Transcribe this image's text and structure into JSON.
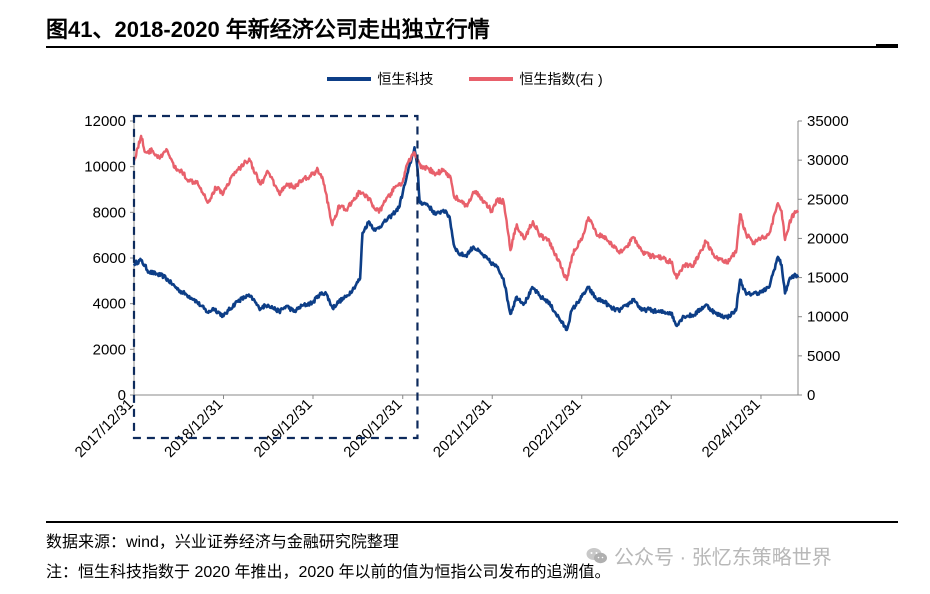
{
  "figure": {
    "title": "图41、2018-2020 年新经济公司走出独立行情",
    "source": "数据来源：wind，兴业证券经济与金融研究院整理",
    "remark": "注：恒生科技指数于 2020 年推出，2020 年以前的值为恒指公司发布的追溯值。",
    "watermark": "公众号 · 张忆东策略世界",
    "watermark_icon": "wechat-icon"
  },
  "chart_data": {
    "type": "line",
    "legend_position": "top-center",
    "grid": false,
    "x_tick_labels": [
      "2017/12/31",
      "2018/12/31",
      "2019/12/31",
      "2020/12/31",
      "2021/12/31",
      "2022/12/31",
      "2023/12/31",
      "2024/12/31"
    ],
    "y_left": {
      "range": [
        0,
        12000
      ],
      "ticks": [
        "0",
        "2000",
        "4000",
        "6000",
        "8000",
        "10000",
        "12000"
      ]
    },
    "y_right": {
      "range": [
        0,
        35000
      ],
      "ticks": [
        "0",
        "5000",
        "10000",
        "15000",
        "20000",
        "25000",
        "30000",
        "35000"
      ]
    },
    "highlight_box": {
      "x_from": "2017-12-31",
      "x_to": "2021-03-01",
      "style": "dashed"
    },
    "series": [
      {
        "name": "恒生科技",
        "axis": "left",
        "color": "#0d3e87",
        "points": [
          [
            "2017-12-31",
            5750
          ],
          [
            "2018-01-29",
            5900
          ],
          [
            "2018-03-01",
            5400
          ],
          [
            "2018-04-01",
            5300
          ],
          [
            "2018-05-01",
            5200
          ],
          [
            "2018-06-01",
            4900
          ],
          [
            "2018-07-01",
            4600
          ],
          [
            "2018-08-01",
            4400
          ],
          [
            "2018-09-01",
            4200
          ],
          [
            "2018-10-01",
            3900
          ],
          [
            "2018-10-30",
            3600
          ],
          [
            "2018-11-20",
            3800
          ],
          [
            "2018-12-31",
            3450
          ],
          [
            "2019-01-20",
            3700
          ],
          [
            "2019-02-25",
            4100
          ],
          [
            "2019-04-10",
            4350
          ],
          [
            "2019-05-01",
            4200
          ],
          [
            "2019-05-25",
            3800
          ],
          [
            "2019-07-01",
            3950
          ],
          [
            "2019-08-15",
            3650
          ],
          [
            "2019-09-15",
            3900
          ],
          [
            "2019-10-15",
            3650
          ],
          [
            "2019-11-15",
            3900
          ],
          [
            "2019-12-31",
            4050
          ],
          [
            "2020-01-20",
            4350
          ],
          [
            "2020-02-20",
            4500
          ],
          [
            "2020-03-20",
            3800
          ],
          [
            "2020-04-15",
            4100
          ],
          [
            "2020-05-15",
            4300
          ],
          [
            "2020-06-15",
            4700
          ],
          [
            "2020-07-10",
            5100
          ],
          [
            "2020-07-20",
            7100
          ],
          [
            "2020-08-15",
            7600
          ],
          [
            "2020-09-10",
            7200
          ],
          [
            "2020-10-10",
            7500
          ],
          [
            "2020-11-10",
            7800
          ],
          [
            "2020-12-15",
            8200
          ],
          [
            "2021-01-15",
            9500
          ],
          [
            "2021-02-17",
            10850
          ],
          [
            "2021-03-01",
            9900
          ],
          [
            "2021-03-10",
            8450
          ],
          [
            "2021-04-10",
            8350
          ],
          [
            "2021-05-15",
            7900
          ],
          [
            "2021-06-15",
            8100
          ],
          [
            "2021-07-10",
            7800
          ],
          [
            "2021-07-27",
            6600
          ],
          [
            "2021-08-15",
            6200
          ],
          [
            "2021-09-15",
            6100
          ],
          [
            "2021-10-15",
            6500
          ],
          [
            "2021-11-15",
            6200
          ],
          [
            "2021-12-31",
            5750
          ],
          [
            "2022-01-20",
            5600
          ],
          [
            "2022-02-15",
            5100
          ],
          [
            "2022-03-15",
            3550
          ],
          [
            "2022-04-10",
            4300
          ],
          [
            "2022-05-10",
            4000
          ],
          [
            "2022-06-15",
            4700
          ],
          [
            "2022-07-15",
            4300
          ],
          [
            "2022-08-15",
            4100
          ],
          [
            "2022-09-15",
            3600
          ],
          [
            "2022-10-31",
            2850
          ],
          [
            "2022-11-20",
            3700
          ],
          [
            "2022-12-31",
            4300
          ],
          [
            "2023-01-27",
            4700
          ],
          [
            "2023-03-01",
            4200
          ],
          [
            "2023-04-01",
            4100
          ],
          [
            "2023-05-01",
            3800
          ],
          [
            "2023-05-31",
            3700
          ],
          [
            "2023-07-01",
            3900
          ],
          [
            "2023-08-01",
            4200
          ],
          [
            "2023-09-01",
            3700
          ],
          [
            "2023-10-01",
            3750
          ],
          [
            "2023-11-01",
            3650
          ],
          [
            "2023-12-31",
            3600
          ],
          [
            "2024-01-20",
            3050
          ],
          [
            "2024-02-20",
            3450
          ],
          [
            "2024-04-01",
            3500
          ],
          [
            "2024-05-20",
            3950
          ],
          [
            "2024-07-01",
            3550
          ],
          [
            "2024-08-15",
            3400
          ],
          [
            "2024-09-20",
            3700
          ],
          [
            "2024-10-07",
            5050
          ],
          [
            "2024-11-01",
            4400
          ],
          [
            "2024-12-01",
            4450
          ],
          [
            "2024-12-31",
            4500
          ],
          [
            "2025-02-01",
            4700
          ],
          [
            "2025-03-10",
            6050
          ],
          [
            "2025-03-25",
            5700
          ],
          [
            "2025-04-08",
            4450
          ],
          [
            "2025-04-25",
            5050
          ],
          [
            "2025-05-15",
            5250
          ],
          [
            "2025-05-31",
            5150
          ]
        ]
      },
      {
        "name": "恒生指数(右 )",
        "axis": "right",
        "color": "#e8606b",
        "points": [
          [
            "2017-12-31",
            29900
          ],
          [
            "2018-01-29",
            33100
          ],
          [
            "2018-02-15",
            31000
          ],
          [
            "2018-03-15",
            31200
          ],
          [
            "2018-04-15",
            30200
          ],
          [
            "2018-05-15",
            31300
          ],
          [
            "2018-06-15",
            29000
          ],
          [
            "2018-07-15",
            28500
          ],
          [
            "2018-08-15",
            27300
          ],
          [
            "2018-09-15",
            27300
          ],
          [
            "2018-10-30",
            24600
          ],
          [
            "2018-11-30",
            26500
          ],
          [
            "2018-12-31",
            25800
          ],
          [
            "2019-01-31",
            27800
          ],
          [
            "2019-03-01",
            28800
          ],
          [
            "2019-04-15",
            30200
          ],
          [
            "2019-05-10",
            28300
          ],
          [
            "2019-06-01",
            26900
          ],
          [
            "2019-07-01",
            28500
          ],
          [
            "2019-08-15",
            25700
          ],
          [
            "2019-09-15",
            27000
          ],
          [
            "2019-10-15",
            26500
          ],
          [
            "2019-11-15",
            27400
          ],
          [
            "2019-12-31",
            28200
          ],
          [
            "2020-01-20",
            28800
          ],
          [
            "2020-02-10",
            27500
          ],
          [
            "2020-03-19",
            21700
          ],
          [
            "2020-04-15",
            24200
          ],
          [
            "2020-05-15",
            23600
          ],
          [
            "2020-06-10",
            24800
          ],
          [
            "2020-07-10",
            26000
          ],
          [
            "2020-08-15",
            25000
          ],
          [
            "2020-09-25",
            23300
          ],
          [
            "2020-10-20",
            24700
          ],
          [
            "2020-11-30",
            26500
          ],
          [
            "2020-12-31",
            27200
          ],
          [
            "2021-01-20",
            29600
          ],
          [
            "2021-02-17",
            31000
          ],
          [
            "2021-03-15",
            29000
          ],
          [
            "2021-04-15",
            28900
          ],
          [
            "2021-05-15",
            28200
          ],
          [
            "2021-06-15",
            28800
          ],
          [
            "2021-07-15",
            27700
          ],
          [
            "2021-07-27",
            25500
          ],
          [
            "2021-08-20",
            24800
          ],
          [
            "2021-09-20",
            24100
          ],
          [
            "2021-10-20",
            26000
          ],
          [
            "2021-11-20",
            25000
          ],
          [
            "2021-12-31",
            23400
          ],
          [
            "2022-01-20",
            24900
          ],
          [
            "2022-02-15",
            24700
          ],
          [
            "2022-03-15",
            18500
          ],
          [
            "2022-04-10",
            21800
          ],
          [
            "2022-05-10",
            19900
          ],
          [
            "2022-06-15",
            22200
          ],
          [
            "2022-07-15",
            20300
          ],
          [
            "2022-08-15",
            19800
          ],
          [
            "2022-09-15",
            18000
          ],
          [
            "2022-10-31",
            14700
          ],
          [
            "2022-11-30",
            18600
          ],
          [
            "2022-12-31",
            19800
          ],
          [
            "2023-01-27",
            22700
          ],
          [
            "2023-03-01",
            20500
          ],
          [
            "2023-04-01",
            20300
          ],
          [
            "2023-05-31",
            18200
          ],
          [
            "2023-07-01",
            19000
          ],
          [
            "2023-08-01",
            20100
          ],
          [
            "2023-09-01",
            18400
          ],
          [
            "2023-10-01",
            17800
          ],
          [
            "2023-11-01",
            17700
          ],
          [
            "2023-12-31",
            17000
          ],
          [
            "2024-01-22",
            14900
          ],
          [
            "2024-02-20",
            16500
          ],
          [
            "2024-04-01",
            16600
          ],
          [
            "2024-05-20",
            19600
          ],
          [
            "2024-07-01",
            17500
          ],
          [
            "2024-08-15",
            17000
          ],
          [
            "2024-09-20",
            18200
          ],
          [
            "2024-10-07",
            23100
          ],
          [
            "2024-11-01",
            20500
          ],
          [
            "2024-12-01",
            19500
          ],
          [
            "2024-12-31",
            20000
          ],
          [
            "2025-02-01",
            20500
          ],
          [
            "2025-03-10",
            24500
          ],
          [
            "2025-03-25",
            23500
          ],
          [
            "2025-04-08",
            19800
          ],
          [
            "2025-04-25",
            21900
          ],
          [
            "2025-05-15",
            23200
          ],
          [
            "2025-05-31",
            23300
          ]
        ]
      }
    ]
  }
}
